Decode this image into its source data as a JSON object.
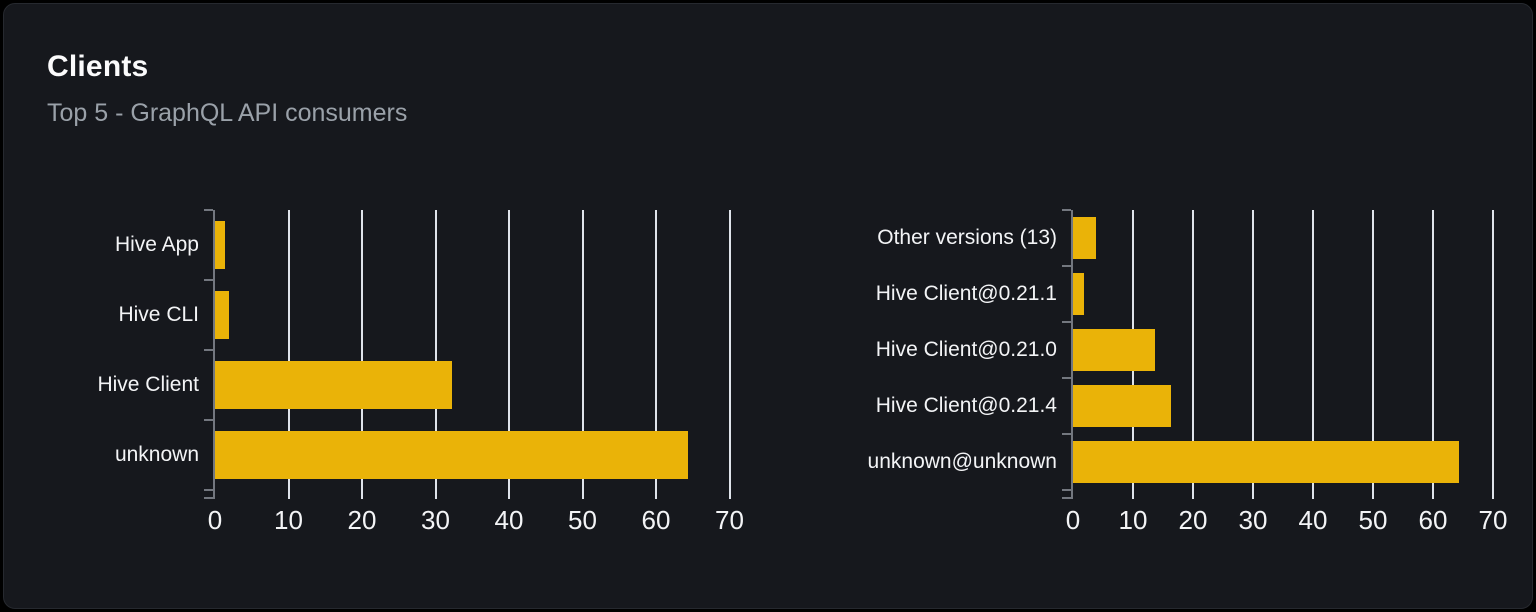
{
  "header": {
    "title": "Clients",
    "subtitle": "Top 5 - GraphQL API consumers"
  },
  "colors": {
    "page_bg": "#000000",
    "card_bg": "#16181d",
    "card_border": "#26292f",
    "bar": "#eab308",
    "gridline": "#dfe3ea",
    "axis": "#73777f",
    "label_text": "#f3f4f6",
    "subtitle_text": "#9aa1a9",
    "title_text": "#fbfbfc"
  },
  "chart_data": [
    {
      "type": "bar",
      "orientation": "horizontal",
      "title": "",
      "xlabel": "",
      "ylabel": "",
      "categories": [
        "Hive App",
        "Hive CLI",
        "Hive Client",
        "unknown"
      ],
      "values": [
        1.4,
        1.9,
        32.2,
        64.4
      ],
      "x_ticks": [
        0,
        10,
        20,
        30,
        40,
        50,
        60,
        70
      ],
      "xlim": [
        0,
        71
      ],
      "grid": "vertical",
      "legend": "none"
    },
    {
      "type": "bar",
      "orientation": "horizontal",
      "title": "",
      "xlabel": "",
      "ylabel": "",
      "categories": [
        "Other versions (13)",
        "Hive Client@0.21.1",
        "Hive Client@0.21.0",
        "Hive Client@0.21.4",
        "unknown@unknown"
      ],
      "values": [
        3.9,
        1.8,
        13.7,
        16.3,
        64.3
      ],
      "x_ticks": [
        0,
        10,
        20,
        30,
        40,
        50,
        60,
        70
      ],
      "xlim": [
        0,
        71
      ],
      "grid": "vertical",
      "legend": "none"
    }
  ]
}
